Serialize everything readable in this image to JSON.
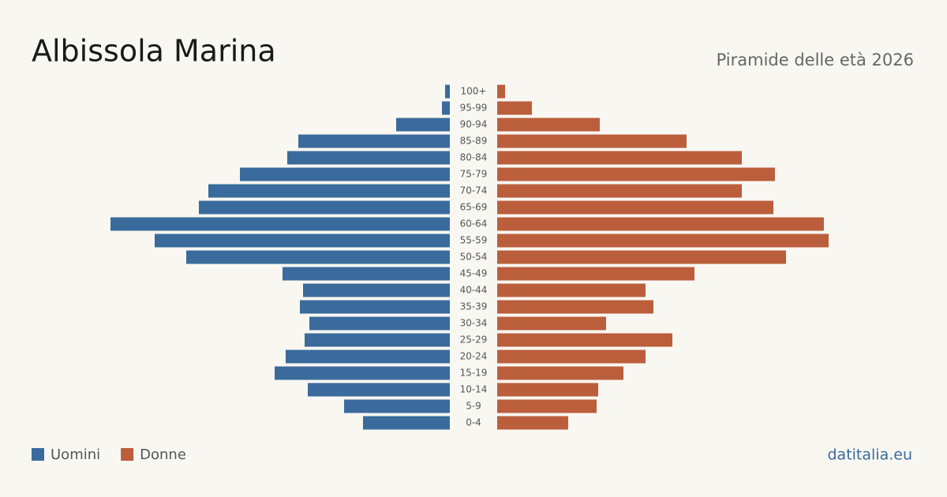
{
  "chart_data": {
    "type": "pyramid",
    "title": "Albissola Marina",
    "subtitle": "Piramide delle età 2026",
    "source": "datitalia.eu",
    "categories": [
      "100+",
      "95-99",
      "90-94",
      "85-89",
      "80-84",
      "75-79",
      "70-74",
      "65-69",
      "60-64",
      "55-59",
      "50-54",
      "45-49",
      "40-44",
      "35-39",
      "30-34",
      "25-29",
      "20-24",
      "15-19",
      "10-14",
      "5-9",
      "0-4"
    ],
    "xlim": [
      0,
      215
    ],
    "series": [
      {
        "name": "Uomini",
        "color": "#3a6b9c",
        "values": [
          3,
          5,
          34,
          96,
          103,
          133,
          153,
          159,
          215,
          187,
          167,
          106,
          93,
          95,
          89,
          92,
          104,
          111,
          90,
          67,
          55
        ]
      },
      {
        "name": "Donne",
        "color": "#bb5e3c",
        "values": [
          5,
          22,
          65,
          120,
          155,
          176,
          155,
          175,
          207,
          210,
          183,
          125,
          94,
          99,
          69,
          111,
          94,
          80,
          64,
          63,
          45
        ]
      }
    ]
  }
}
